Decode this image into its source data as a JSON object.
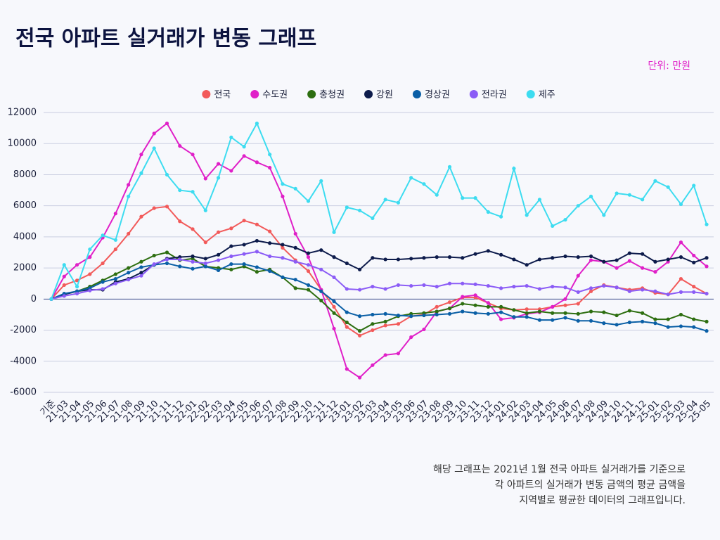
{
  "chart_data": {
    "type": "line",
    "title": "전국 아파트 실거래가 변동 그래프",
    "unit_label": "단위: 만원",
    "note": [
      "해당 그래프는 2021년 1월 전국 아파트 실거래가를 기준으로",
      "각 아파트의 실거래가 변동 금액의 평균 금액을",
      "지역별로 평균한 데이터의 그래프입니다."
    ],
    "categories": [
      "기준",
      "21-03",
      "21-04",
      "21-05",
      "21-06",
      "21-07",
      "21-08",
      "21-09",
      "21-10",
      "21-11",
      "21-12",
      "22-01",
      "22-02",
      "22-03",
      "22-04",
      "22-05",
      "22-06",
      "22-07",
      "22-08",
      "22-09",
      "22-10",
      "22-11",
      "22-12",
      "23-01",
      "23-02",
      "23-03",
      "23-04",
      "23-05",
      "23-06",
      "23-07",
      "23-08",
      "23-09",
      "23-10",
      "23-11",
      "23-12",
      "24-01",
      "24-02",
      "24-03",
      "24-04",
      "24-05",
      "24-06",
      "24-07",
      "24-08",
      "24-09",
      "24-10",
      "24-11",
      "24-12",
      "25-01",
      "25-02",
      "25-03",
      "25-04",
      "25-05"
    ],
    "ylim": [
      -6000,
      12000
    ],
    "yticks": [
      -6000,
      -4000,
      -2000,
      0,
      2000,
      4000,
      6000,
      8000,
      10000,
      12000
    ],
    "grid": true,
    "legend": "top",
    "series": [
      {
        "name": "전국",
        "color": "#f25a5a",
        "values": [
          0,
          900,
          1200,
          1600,
          2300,
          3200,
          4200,
          5300,
          5850,
          5950,
          5000,
          4500,
          3650,
          4300,
          4550,
          5050,
          4800,
          4350,
          3300,
          2500,
          1800,
          600,
          -500,
          -1800,
          -2350,
          -2000,
          -1700,
          -1600,
          -1100,
          -1000,
          -500,
          -200,
          100,
          100,
          -250,
          -600,
          -700,
          -650,
          -650,
          -500,
          -400,
          -300,
          500,
          900,
          750,
          600,
          700,
          400,
          300,
          1300,
          800,
          350
        ]
      },
      {
        "name": "수도권",
        "color": "#e020c8",
        "values": [
          0,
          1450,
          2200,
          2700,
          3950,
          5500,
          7350,
          9300,
          10650,
          11300,
          9850,
          9300,
          7750,
          8700,
          8250,
          9200,
          8800,
          8450,
          6600,
          4200,
          2700,
          600,
          -1900,
          -4500,
          -5050,
          -4250,
          -3600,
          -3500,
          -2450,
          -1950,
          -800,
          -600,
          150,
          250,
          -250,
          -1300,
          -1200,
          -950,
          -850,
          -500,
          0,
          1500,
          2500,
          2400,
          2000,
          2450,
          2000,
          1750,
          2400,
          3650,
          2800,
          2100
        ]
      },
      {
        "name": "충청권",
        "color": "#2d6e10",
        "values": [
          0,
          300,
          500,
          800,
          1200,
          1600,
          2000,
          2400,
          2800,
          3000,
          2500,
          2600,
          2100,
          2000,
          1900,
          2100,
          1750,
          1900,
          1400,
          700,
          600,
          -100,
          -900,
          -1500,
          -2050,
          -1600,
          -1450,
          -1100,
          -950,
          -900,
          -800,
          -600,
          -300,
          -400,
          -500,
          -500,
          -700,
          -900,
          -800,
          -900,
          -900,
          -950,
          -800,
          -850,
          -1050,
          -750,
          -900,
          -1300,
          -1300,
          -1000,
          -1300,
          -1450
        ]
      },
      {
        "name": "강원",
        "color": "#0d1b4b",
        "values": [
          0,
          300,
          500,
          600,
          600,
          1100,
          1300,
          1700,
          2200,
          2600,
          2700,
          2750,
          2600,
          2850,
          3400,
          3500,
          3750,
          3600,
          3500,
          3300,
          2950,
          3150,
          2700,
          2300,
          1900,
          2650,
          2550,
          2550,
          2600,
          2650,
          2700,
          2700,
          2650,
          2900,
          3100,
          2850,
          2550,
          2200,
          2550,
          2650,
          2750,
          2700,
          2750,
          2400,
          2500,
          2950,
          2900,
          2400,
          2550,
          2700,
          2350,
          2650
        ]
      },
      {
        "name": "경상권",
        "color": "#0a5fa6",
        "values": [
          0,
          350,
          500,
          700,
          1100,
          1300,
          1700,
          2050,
          2200,
          2300,
          2100,
          1950,
          2100,
          1850,
          2250,
          2250,
          2050,
          1800,
          1400,
          1250,
          900,
          500,
          -150,
          -850,
          -1100,
          -1000,
          -950,
          -1050,
          -1100,
          -1050,
          -1000,
          -950,
          -800,
          -900,
          -950,
          -850,
          -1150,
          -1150,
          -1350,
          -1350,
          -1200,
          -1400,
          -1400,
          -1550,
          -1650,
          -1500,
          -1450,
          -1550,
          -1800,
          -1750,
          -1800,
          -2050
        ]
      },
      {
        "name": "전라권",
        "color": "#8b5cf6",
        "values": [
          0,
          200,
          350,
          550,
          650,
          1000,
          1250,
          1500,
          2250,
          2550,
          2550,
          2400,
          2300,
          2500,
          2750,
          2900,
          3050,
          2750,
          2650,
          2400,
          2200,
          1900,
          1400,
          650,
          600,
          800,
          650,
          900,
          850,
          900,
          800,
          1000,
          1000,
          950,
          850,
          700,
          800,
          850,
          650,
          800,
          750,
          450,
          700,
          850,
          750,
          500,
          600,
          500,
          300,
          450,
          450,
          350
        ]
      },
      {
        "name": "제주",
        "color": "#3ddcf0",
        "values": [
          0,
          2200,
          800,
          3200,
          4100,
          3800,
          6600,
          8100,
          9700,
          8000,
          7000,
          6900,
          5700,
          7800,
          10400,
          9800,
          11300,
          9300,
          7400,
          7100,
          6300,
          7600,
          4300,
          5900,
          5700,
          5200,
          6400,
          6200,
          7800,
          7400,
          6700,
          8500,
          6500,
          6500,
          5600,
          5300,
          8400,
          5400,
          6400,
          4700,
          5100,
          6000,
          6600,
          5400,
          6800,
          6700,
          6400,
          7600,
          7200,
          6100,
          7300,
          4800
        ]
      }
    ]
  }
}
